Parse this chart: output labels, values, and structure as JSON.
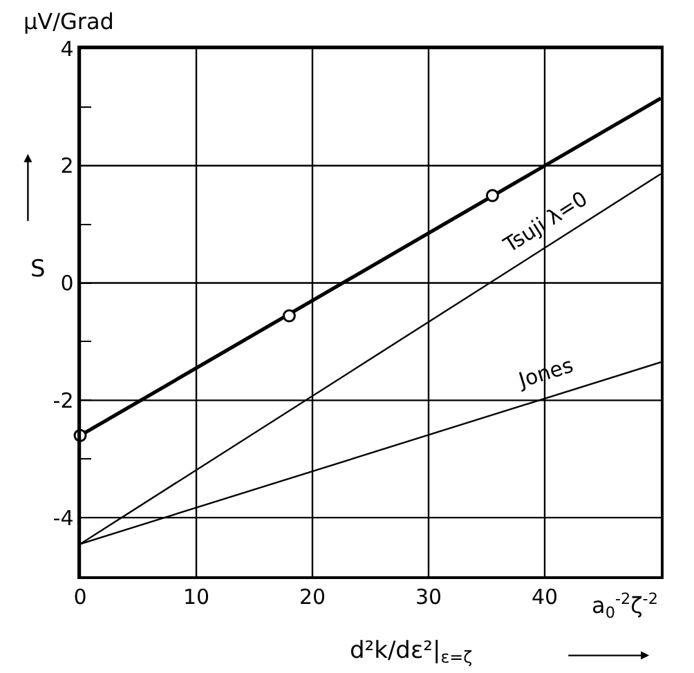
{
  "chart_data": {
    "type": "line",
    "ylabel": "S",
    "xlabel": "d²k/dε²|$_{ε=ζ}$",
    "annotations": [
      "µV/Grad",
      "a$_{0}$$^{-2}$ζ$^{-2}$"
    ],
    "series": [
      {
        "color": "#000000",
        "x": [
          0,
          50
        ],
        "values": [
          -2.6,
          3.15
        ]
      },
      {
        "type": "scatter",
        "color": "#000000",
        "marker": "circle",
        "x": [
          0,
          18,
          35.5
        ],
        "values": [
          -2.6,
          -0.56,
          1.49
        ]
      },
      {
        "name": "Tsuji λ=0",
        "color": "#000000",
        "x": [
          0,
          50
        ],
        "values": [
          -4.45,
          1.86
        ]
      },
      {
        "name": "Jones",
        "color": "#000000",
        "x": [
          0,
          50
        ],
        "values": [
          -4.45,
          -1.35
        ]
      }
    ],
    "xlim": [
      0,
      50
    ],
    "ylim": [
      -5,
      4
    ],
    "xticks": [
      0,
      10,
      20,
      30,
      40
    ],
    "yticks": [
      -4,
      {
        "value": -3,
        "label": null
      },
      -2,
      {
        "value": -1,
        "label": null
      },
      0,
      {
        "value": 1,
        "label": null
      },
      2,
      {
        "value": 3,
        "label": null
      },
      4
    ],
    "grid": true,
    "legend": false,
    "marker": "none",
    "line_style": "solid"
  }
}
